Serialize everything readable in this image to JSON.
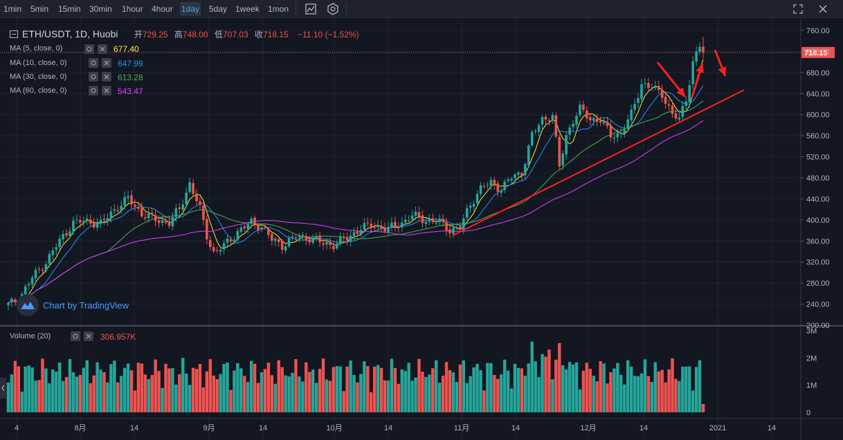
{
  "toolbar": {
    "intervals": [
      "1min",
      "5min",
      "15min",
      "30min",
      "1hour",
      "4hour",
      "1day",
      "5day",
      "1week",
      "1mon"
    ],
    "active_interval": "1day",
    "icons": [
      "indicator-icon",
      "settings-icon",
      "fullscreen-icon",
      "close-icon"
    ]
  },
  "legend": {
    "symbol": "ETH/USDT, 1D, Huobi",
    "open_label": "开",
    "open": "729.25",
    "high_label": "高",
    "high": "748.00",
    "low_label": "低",
    "low": "707.03",
    "close_label": "收",
    "close": "718.15",
    "change": "−11.10 (−1.52%)"
  },
  "ma": [
    {
      "label": "MA (5, close, 0)",
      "value": "677.40",
      "color": "#ffeb3b"
    },
    {
      "label": "MA (10, close, 0)",
      "value": "647.99",
      "color": "#2196f3"
    },
    {
      "label": "MA (30, close, 0)",
      "value": "613.28",
      "color": "#4caf50"
    },
    {
      "label": "MA (60, close, 0)",
      "value": "543.47",
      "color": "#e040fb"
    }
  ],
  "volume_legend": {
    "label": "Volume (20)",
    "value": "306.957K"
  },
  "price_axis": {
    "ticks": [
      "760.00",
      "720.00",
      "680.00",
      "640.00",
      "600.00",
      "560.00",
      "520.00",
      "480.00",
      "440.00",
      "400.00",
      "360.00",
      "320.00",
      "280.00",
      "240.00",
      "200.00"
    ],
    "last_price": "718.15"
  },
  "volume_axis": {
    "ticks": [
      "3M",
      "2M",
      "1M",
      "0"
    ]
  },
  "time_axis": {
    "ticks": [
      "4",
      "8月",
      "14",
      "9月",
      "14",
      "10月",
      "14",
      "11月",
      "14",
      "12月",
      "14",
      "2021",
      "14"
    ]
  },
  "watermark": "Chart by TradingView",
  "colors": {
    "up": "#26a69a",
    "down": "#ef5350",
    "bg": "#131722",
    "trendline": "#ff1f1f"
  },
  "chart_data": {
    "type": "candlestick",
    "symbol": "ETH/USDT",
    "interval": "1D",
    "exchange": "Huobi",
    "ylim": [
      200,
      760
    ],
    "y_ticks": [
      760,
      720,
      680,
      640,
      600,
      560,
      520,
      480,
      440,
      400,
      360,
      320,
      280,
      240,
      200
    ],
    "x_ticks": [
      "4",
      "8月",
      "14",
      "9月",
      "14",
      "10月",
      "14",
      "11月",
      "14",
      "12月",
      "14",
      "2021",
      "14"
    ],
    "last_candle": {
      "open": 729.25,
      "high": 748.0,
      "low": 707.03,
      "close": 718.15,
      "change": -11.1,
      "change_pct": -1.52
    },
    "ma_last_values": {
      "MA5": 677.4,
      "MA10": 647.99,
      "MA30": 613.28,
      "MA60": 543.47
    },
    "volume_ylim": [
      0,
      3000000
    ],
    "last_volume": 306957
  }
}
